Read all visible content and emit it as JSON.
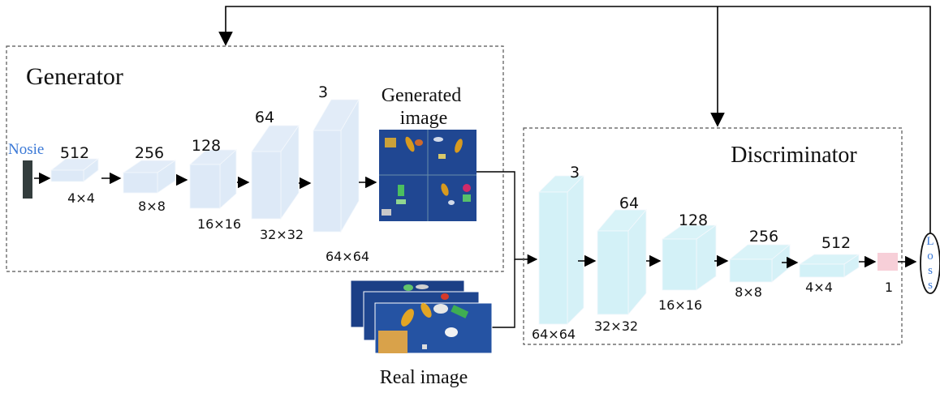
{
  "generator": {
    "title": "Generator",
    "noise_label": "Nosie",
    "layers": [
      {
        "channels": "512",
        "size": "4×4"
      },
      {
        "channels": "256",
        "size": "8×8"
      },
      {
        "channels": "128",
        "size": "16×16"
      },
      {
        "channels": "64",
        "size": "32×32"
      },
      {
        "channels": "3",
        "size": "64×64"
      }
    ],
    "output_label_line1": "Generated",
    "output_label_line2": "image"
  },
  "real_image_label": "Real image",
  "discriminator": {
    "title": "Discriminator",
    "layers": [
      {
        "channels": "3",
        "size": "64×64"
      },
      {
        "channels": "64",
        "size": "32×32"
      },
      {
        "channels": "128",
        "size": "16×16"
      },
      {
        "channels": "256",
        "size": "8×8"
      },
      {
        "channels": "512",
        "size": "4×4"
      }
    ],
    "output_value": "1"
  },
  "loss": {
    "letters": [
      "L",
      "o",
      "s",
      "s"
    ]
  },
  "colors": {
    "generator_block": "#dde9f7",
    "discriminator_block": "#d3f1f7",
    "output_block": "#f7cfd8",
    "noise_block": "#333d3d",
    "loss_text": "#3a78d6",
    "noise_text": "#3a78d6",
    "photo_bg": "#1b3f86"
  }
}
